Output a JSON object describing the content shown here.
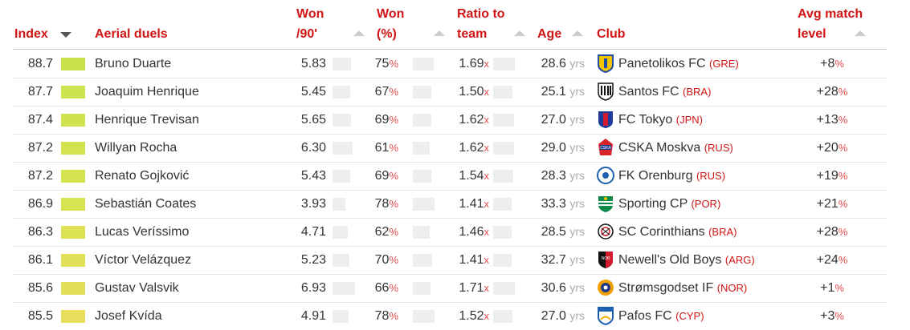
{
  "headers": {
    "index": "Index",
    "player": "Aerial duels",
    "won_90_line1": "Won",
    "won_90_line2": "/90'",
    "won_pct_line1": "Won",
    "won_pct_line2": "(%)",
    "ratio_line1": "Ratio to",
    "ratio_line2": "team",
    "age": "Age",
    "club": "Club",
    "avg_line1": "Avg match",
    "avg_line2": "level"
  },
  "units": {
    "pct": "%",
    "x": "x",
    "yrs": "yrs"
  },
  "rows": [
    {
      "index": "88.7",
      "name": "Bruno Duarte",
      "won90": "5.83",
      "won_pct": "75",
      "ratio": "1.69",
      "age": "28.6",
      "club": "Panetolikos FC",
      "country": "(GRE)",
      "avg": "+8",
      "color": "#c9e24a",
      "logo": "panetolikos-logo"
    },
    {
      "index": "87.7",
      "name": "Joaquim Henrique",
      "won90": "5.45",
      "won_pct": "67",
      "ratio": "1.50",
      "age": "25.1",
      "club": "Santos FC",
      "country": "(BRA)",
      "avg": "+28",
      "color": "#cde54d",
      "logo": "santos-logo"
    },
    {
      "index": "87.4",
      "name": "Henrique Trevisan",
      "won90": "5.65",
      "won_pct": "69",
      "ratio": "1.62",
      "age": "27.0",
      "club": "FC Tokyo",
      "country": "(JPN)",
      "avg": "+13",
      "color": "#d0e34e",
      "logo": "fc-tokyo-logo"
    },
    {
      "index": "87.2",
      "name": "Willyan Rocha",
      "won90": "6.30",
      "won_pct": "61",
      "ratio": "1.62",
      "age": "29.0",
      "club": "CSKA Moskva",
      "country": "(RUS)",
      "avg": "+20",
      "color": "#d3e34f",
      "logo": "cska-logo"
    },
    {
      "index": "87.2",
      "name": "Renato Gojković",
      "won90": "5.43",
      "won_pct": "69",
      "ratio": "1.54",
      "age": "28.3",
      "club": "FK Orenburg",
      "country": "(RUS)",
      "avg": "+19",
      "color": "#d3e34f",
      "logo": "orenburg-logo"
    },
    {
      "index": "86.9",
      "name": "Sebastián Coates",
      "won90": "3.93",
      "won_pct": "78",
      "ratio": "1.41",
      "age": "33.3",
      "club": "Sporting CP",
      "country": "(POR)",
      "avg": "+21",
      "color": "#d8e352",
      "logo": "sporting-logo"
    },
    {
      "index": "86.3",
      "name": "Lucas Veríssimo",
      "won90": "4.71",
      "won_pct": "62",
      "ratio": "1.46",
      "age": "28.5",
      "club": "SC Corinthians",
      "country": "(BRA)",
      "avg": "+28",
      "color": "#dde255",
      "logo": "corinthians-logo"
    },
    {
      "index": "86.1",
      "name": "Víctor Velázquez",
      "won90": "5.23",
      "won_pct": "70",
      "ratio": "1.41",
      "age": "32.7",
      "club": "Newell's Old Boys",
      "country": "(ARG)",
      "avg": "+24",
      "color": "#e0e157",
      "logo": "newells-logo"
    },
    {
      "index": "85.6",
      "name": "Gustav Valsvik",
      "won90": "6.93",
      "won_pct": "66",
      "ratio": "1.71",
      "age": "30.6",
      "club": "Strømsgodset IF",
      "country": "(NOR)",
      "avg": "+1",
      "color": "#e4df5a",
      "logo": "stromsgodset-logo"
    },
    {
      "index": "85.5",
      "name": "Josef Kvída",
      "won90": "4.91",
      "won_pct": "78",
      "ratio": "1.52",
      "age": "27.0",
      "club": "Pafos FC",
      "country": "(CYP)",
      "avg": "+3",
      "color": "#e6de5c",
      "logo": "pafos-logo"
    }
  ]
}
